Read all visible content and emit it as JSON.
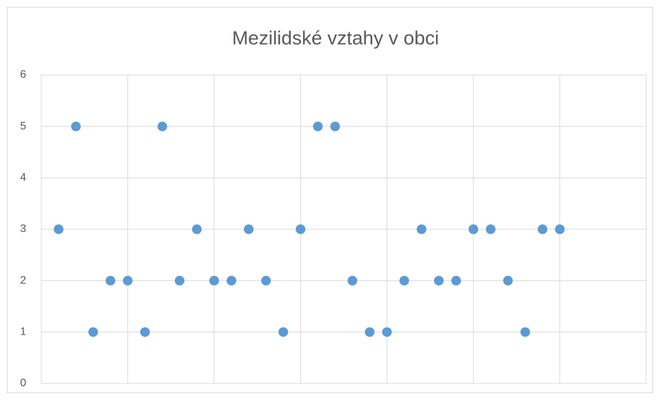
{
  "chart_data": {
    "type": "scatter",
    "title": "Mezilidské vztahy v obci",
    "x": [
      1,
      2,
      3,
      4,
      5,
      6,
      7,
      8,
      9,
      10,
      11,
      12,
      13,
      14,
      15,
      16,
      17,
      18,
      19,
      20,
      21,
      22,
      23,
      24,
      25,
      26,
      27,
      28,
      29,
      30
    ],
    "series": [
      {
        "color": "#5b9bd5",
        "values": [
          3,
          5,
          1,
          2,
          2,
          1,
          5,
          2,
          3,
          2,
          2,
          3,
          2,
          1,
          3,
          5,
          5,
          2,
          1,
          1,
          2,
          3,
          2,
          2,
          3,
          3,
          2,
          1,
          3,
          3
        ]
      }
    ],
    "xlim": [
      0,
      35
    ],
    "xticks": [
      0,
      5,
      10,
      15,
      20,
      25,
      30,
      35
    ],
    "ylim": [
      0,
      6
    ],
    "yticks": [
      0,
      1,
      2,
      3,
      4,
      5,
      6
    ],
    "grid": true
  }
}
